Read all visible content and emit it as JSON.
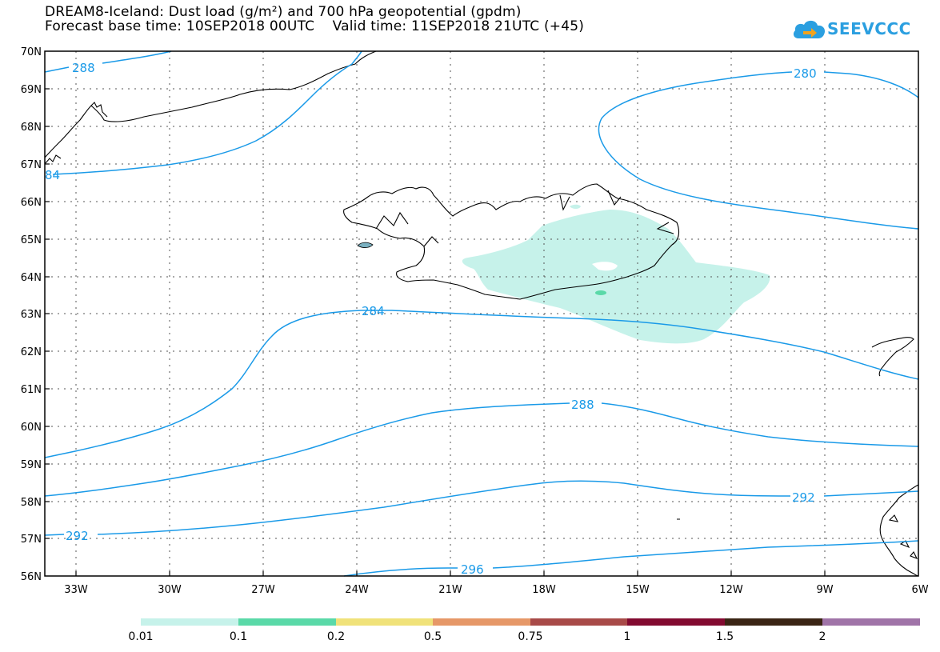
{
  "header": {
    "title_line1": "DREAM8-Iceland: Dust load (g/m²) and 700 hPa geopotential (gpdm)",
    "title_line2": "Forecast base time: 10SEP2018 00UTC    Valid time: 11SEP2018 21UTC (+45)"
  },
  "logo": {
    "text": "SEEVCCC",
    "icon": "cloud-arrow-icon",
    "color": "#2b9fe0"
  },
  "map": {
    "lat_labels": [
      "70N",
      "69N",
      "68N",
      "67N",
      "66N",
      "65N",
      "64N",
      "63N",
      "62N",
      "61N",
      "60N",
      "59N",
      "58N",
      "57N",
      "56N"
    ],
    "lon_labels": [
      "33W",
      "30W",
      "27W",
      "24W",
      "21W",
      "18W",
      "15W",
      "12W",
      "9W",
      "6W"
    ],
    "contour_color": "#1a9ae8",
    "contour_labels": [
      "288",
      "84",
      "280",
      "284",
      "288",
      "292",
      "292",
      "296"
    ]
  },
  "colorbar": {
    "colors": [
      "#c6f2ea",
      "#5ad9a8",
      "#f0e27a",
      "#e69868",
      "#a84a48",
      "#820a30",
      "#3a2414",
      "#a074a8"
    ],
    "ticks": [
      "0.01",
      "0.1",
      "0.2",
      "0.5",
      "0.75",
      "1",
      "1.5",
      "2"
    ]
  }
}
